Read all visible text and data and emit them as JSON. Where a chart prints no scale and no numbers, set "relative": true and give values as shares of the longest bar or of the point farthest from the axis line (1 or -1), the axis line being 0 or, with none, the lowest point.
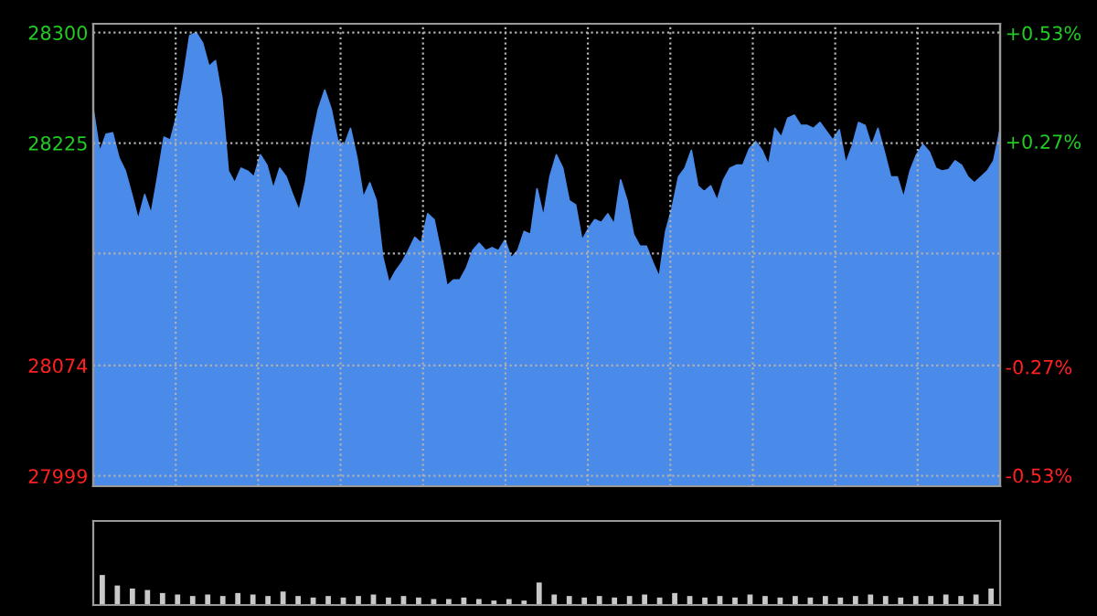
{
  "chart_data": [
    {
      "type": "area",
      "categories": [
        null,
        null,
        null,
        null,
        null,
        null,
        null,
        null,
        null,
        null,
        null,
        null,
        null,
        null,
        null,
        null,
        null,
        null,
        null,
        null,
        null,
        null,
        null,
        null,
        null,
        null,
        null,
        null,
        null,
        null,
        null,
        null,
        null,
        null,
        null,
        null,
        null,
        null,
        null,
        null,
        null,
        null,
        null,
        null,
        null,
        null,
        null,
        null,
        null,
        null,
        null,
        null,
        null,
        null,
        null,
        null,
        null,
        null,
        null,
        null,
        null,
        null,
        null,
        null,
        null,
        null,
        null,
        null,
        null,
        null,
        null,
        null,
        null,
        null,
        null,
        null,
        null,
        null,
        null,
        null,
        null,
        null,
        null,
        null,
        null,
        null,
        null,
        null,
        null,
        null,
        null,
        null,
        null,
        null,
        null,
        null,
        null,
        null,
        null,
        null,
        null,
        null,
        null,
        null,
        null,
        null,
        null,
        null,
        null,
        null,
        null,
        null,
        null,
        null,
        null,
        null,
        null,
        null,
        null,
        null,
        null,
        null,
        null,
        null,
        null,
        null,
        null,
        null,
        null,
        null,
        null,
        null,
        null,
        null,
        null,
        null,
        null,
        null,
        null,
        null,
        null,
        null
      ],
      "series": [
        {
          "color": "#4a8ae8",
          "values": [
            28248,
            28219,
            28231,
            28232,
            28215,
            28206,
            28190,
            28173,
            28190,
            28177,
            28202,
            28229,
            28227,
            28244,
            28269,
            28298,
            28300,
            28293,
            28277,
            28281,
            28256,
            28206,
            28198,
            28208,
            28206,
            28202,
            28217,
            28210,
            28194,
            28208,
            28202,
            28190,
            28179,
            28198,
            28227,
            28248,
            28261,
            28248,
            28227,
            28223,
            28235,
            28215,
            28188,
            28198,
            28186,
            28148,
            28130,
            28138,
            28144,
            28152,
            28161,
            28157,
            28177,
            28173,
            28152,
            28128,
            28132,
            28132,
            28140,
            28152,
            28157,
            28152,
            28154,
            28152,
            28159,
            28147,
            28152,
            28165,
            28163,
            28194,
            28175,
            28202,
            28217,
            28208,
            28186,
            28183,
            28159,
            28167,
            28173,
            28171,
            28177,
            28170,
            28200,
            28186,
            28163,
            28155,
            28155,
            28144,
            28134,
            28165,
            28181,
            28202,
            28208,
            28220,
            28196,
            28192,
            28196,
            28186,
            28200,
            28208,
            28210,
            28210,
            28221,
            28226,
            28220,
            28210,
            28235,
            28229,
            28242,
            28244,
            28237,
            28237,
            28235,
            28239,
            28233,
            28227,
            28234,
            28211,
            28223,
            28239,
            28237,
            28223,
            28235,
            28219,
            28202,
            28202,
            28188,
            28206,
            28217,
            28224,
            28219,
            28208,
            28206,
            28207,
            28213,
            28210,
            28202,
            28198,
            28202,
            28206,
            28213,
            28234
          ]
        }
      ],
      "ylim": [
        27992,
        28306
      ],
      "yticks": [
        27999,
        28074,
        {
          "value": 28150,
          "label": null
        },
        28225,
        28300
      ],
      "y2lim": [
        -0.556,
        0.552
      ],
      "y2ticks": [
        {
          "value": -0.53,
          "label": "-0.53%"
        },
        {
          "value": -0.27,
          "label": "-0.27%"
        },
        {
          "value": 0.27,
          "label": "+0.27%"
        },
        {
          "value": 0.53,
          "label": "+0.53%"
        }
      ],
      "grid": true
    },
    {
      "type": "bar",
      "relative": true,
      "categories": [
        null,
        null,
        null,
        null,
        null,
        null,
        null,
        null,
        null,
        null,
        null,
        null,
        null,
        null,
        null,
        null,
        null,
        null,
        null,
        null,
        null,
        null,
        null,
        null,
        null,
        null,
        null,
        null,
        null,
        null,
        null,
        null,
        null,
        null,
        null,
        null,
        null,
        null,
        null,
        null,
        null,
        null,
        null,
        null,
        null,
        null,
        null,
        null,
        null,
        null,
        null,
        null,
        null,
        null,
        null,
        null,
        null,
        null,
        null,
        null
      ],
      "color": "#c8c8c8",
      "values": [
        1,
        0.65,
        0.55,
        0.5,
        0.4,
        0.35,
        0.3,
        0.35,
        0.3,
        0.4,
        0.35,
        0.3,
        0.45,
        0.3,
        0.25,
        0.3,
        0.25,
        0.3,
        0.35,
        0.25,
        0.3,
        0.25,
        0.2,
        0.2,
        0.25,
        0.2,
        0.15,
        0.2,
        0.15,
        0.75,
        0.35,
        0.3,
        0.25,
        0.3,
        0.25,
        0.3,
        0.35,
        0.25,
        0.4,
        0.3,
        0.25,
        0.3,
        0.25,
        0.35,
        0.3,
        0.25,
        0.3,
        0.25,
        0.3,
        0.25,
        0.3,
        0.35,
        0.3,
        0.25,
        0.3,
        0.3,
        0.35,
        0.3,
        0.35,
        0.55
      ]
    }
  ]
}
